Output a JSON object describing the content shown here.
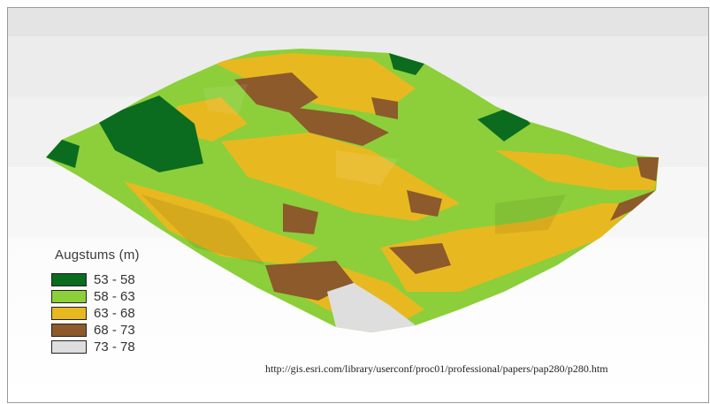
{
  "legend": {
    "title": "Augstums (m)",
    "classes": [
      {
        "label": "53 - 58",
        "color": "#0b6b1f"
      },
      {
        "label": "58 - 63",
        "color": "#8ccf3a"
      },
      {
        "label": "63 - 68",
        "color": "#e8b820"
      },
      {
        "label": "68 - 73",
        "color": "#8c5a2b"
      },
      {
        "label": "73 - 78",
        "color": "#dedede"
      }
    ]
  },
  "source_url": "http://gis.esri.com/library/userconf/proc01/professional/papers/pap280/p280.htm"
}
